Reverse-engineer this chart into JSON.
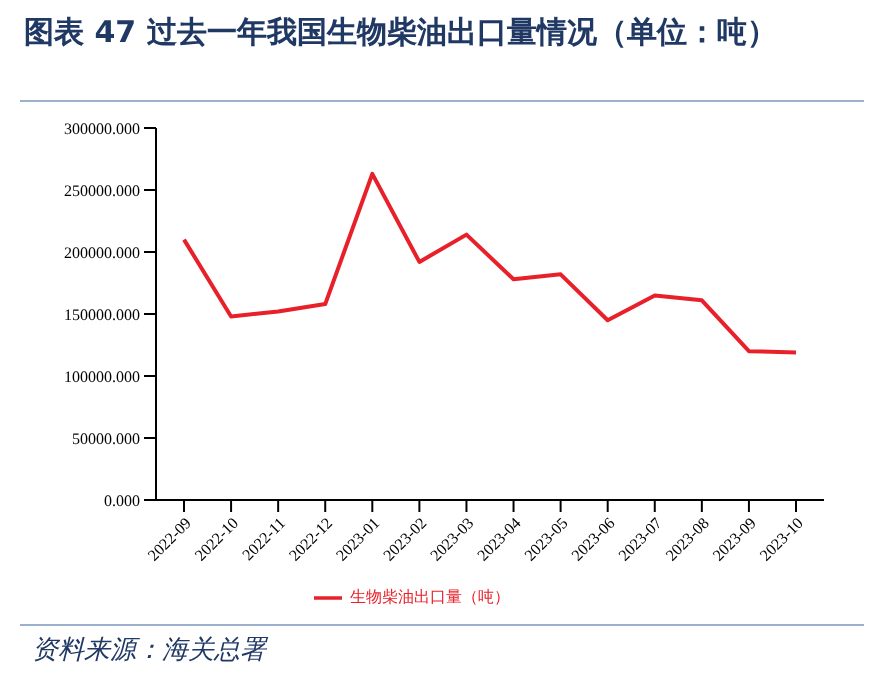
{
  "chart_data": {
    "type": "line",
    "title": "图表 47  过去一年我国生物柴油出口量情况（单位：吨）",
    "categories": [
      "2022-09",
      "2022-10",
      "2022-11",
      "2022-12",
      "2023-01",
      "2023-02",
      "2023-03",
      "2023-04",
      "2023-05",
      "2023-06",
      "2023-07",
      "2023-08",
      "2023-09",
      "2023-10"
    ],
    "series": [
      {
        "name": "生物柴油出口量（吨）",
        "color": "#e8202a",
        "values": [
          210000,
          148000,
          152000,
          158000,
          263000,
          192000,
          214000,
          178000,
          182000,
          145000,
          165000,
          161000,
          120000,
          119000
        ]
      }
    ],
    "ylim": [
      0,
      300000
    ],
    "yticks": [
      {
        "value": 0,
        "label": "0.000"
      },
      {
        "value": 50000,
        "label": "50000.000"
      },
      {
        "value": 100000,
        "label": "100000.000"
      },
      {
        "value": 150000,
        "label": "150000.000"
      },
      {
        "value": 200000,
        "label": "200000.000"
      },
      {
        "value": 250000,
        "label": "250000.000"
      },
      {
        "value": 300000,
        "label": "300000.000"
      }
    ],
    "grid": false,
    "legend": "bottom",
    "marker": "none",
    "line_style": "solid",
    "annotations": [
      "资料来源：海关总署"
    ]
  }
}
